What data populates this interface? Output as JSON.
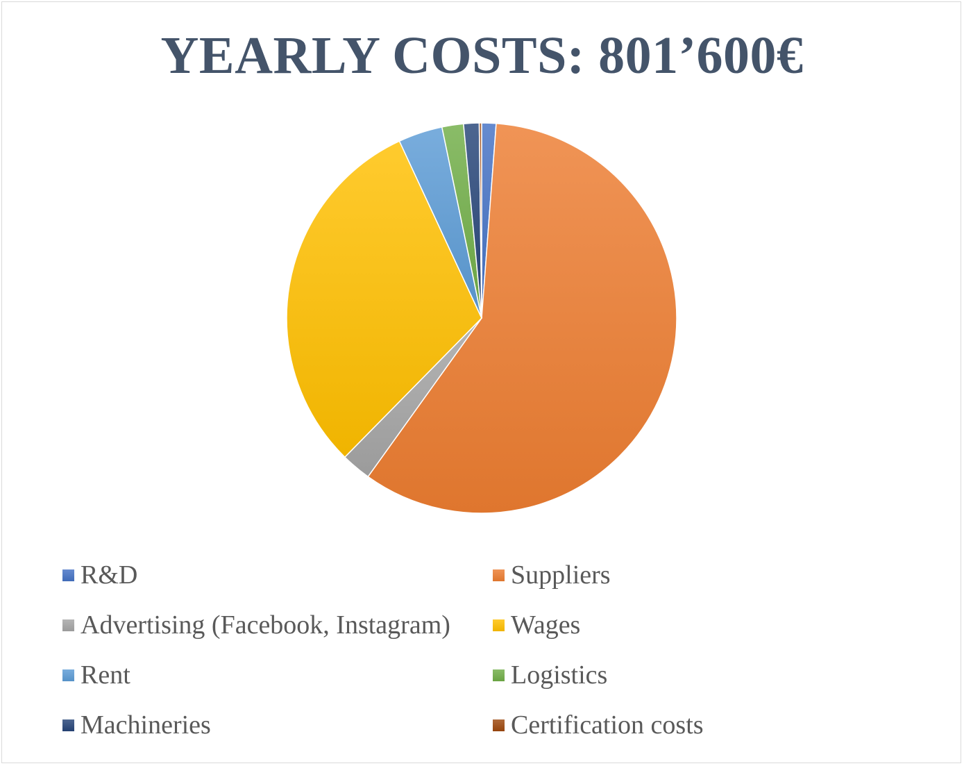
{
  "chart_data": {
    "type": "pie",
    "title": "YEARLY COSTS: 801’600€",
    "start_angle_deg": 0,
    "direction": "clockwise",
    "legend_position": "bottom",
    "slices": [
      {
        "name": "R&D",
        "value": 1.2,
        "color": "#4472c4"
      },
      {
        "name": "Suppliers",
        "value": 59.3,
        "color": "#ed7d31"
      },
      {
        "name": "Advertising (Facebook, Instagram)",
        "value": 2.5,
        "color": "#a5a5a5"
      },
      {
        "name": "Wages",
        "value": 31.0,
        "color": "#ffc000"
      },
      {
        "name": "Rent",
        "value": 3.7,
        "color": "#5b9bd5"
      },
      {
        "name": "Logistics",
        "value": 1.8,
        "color": "#70ad47"
      },
      {
        "name": "Machineries",
        "value": 1.3,
        "color": "#264478"
      },
      {
        "name": "Certification costs",
        "value": 0.2,
        "color": "#9e480e"
      }
    ]
  }
}
